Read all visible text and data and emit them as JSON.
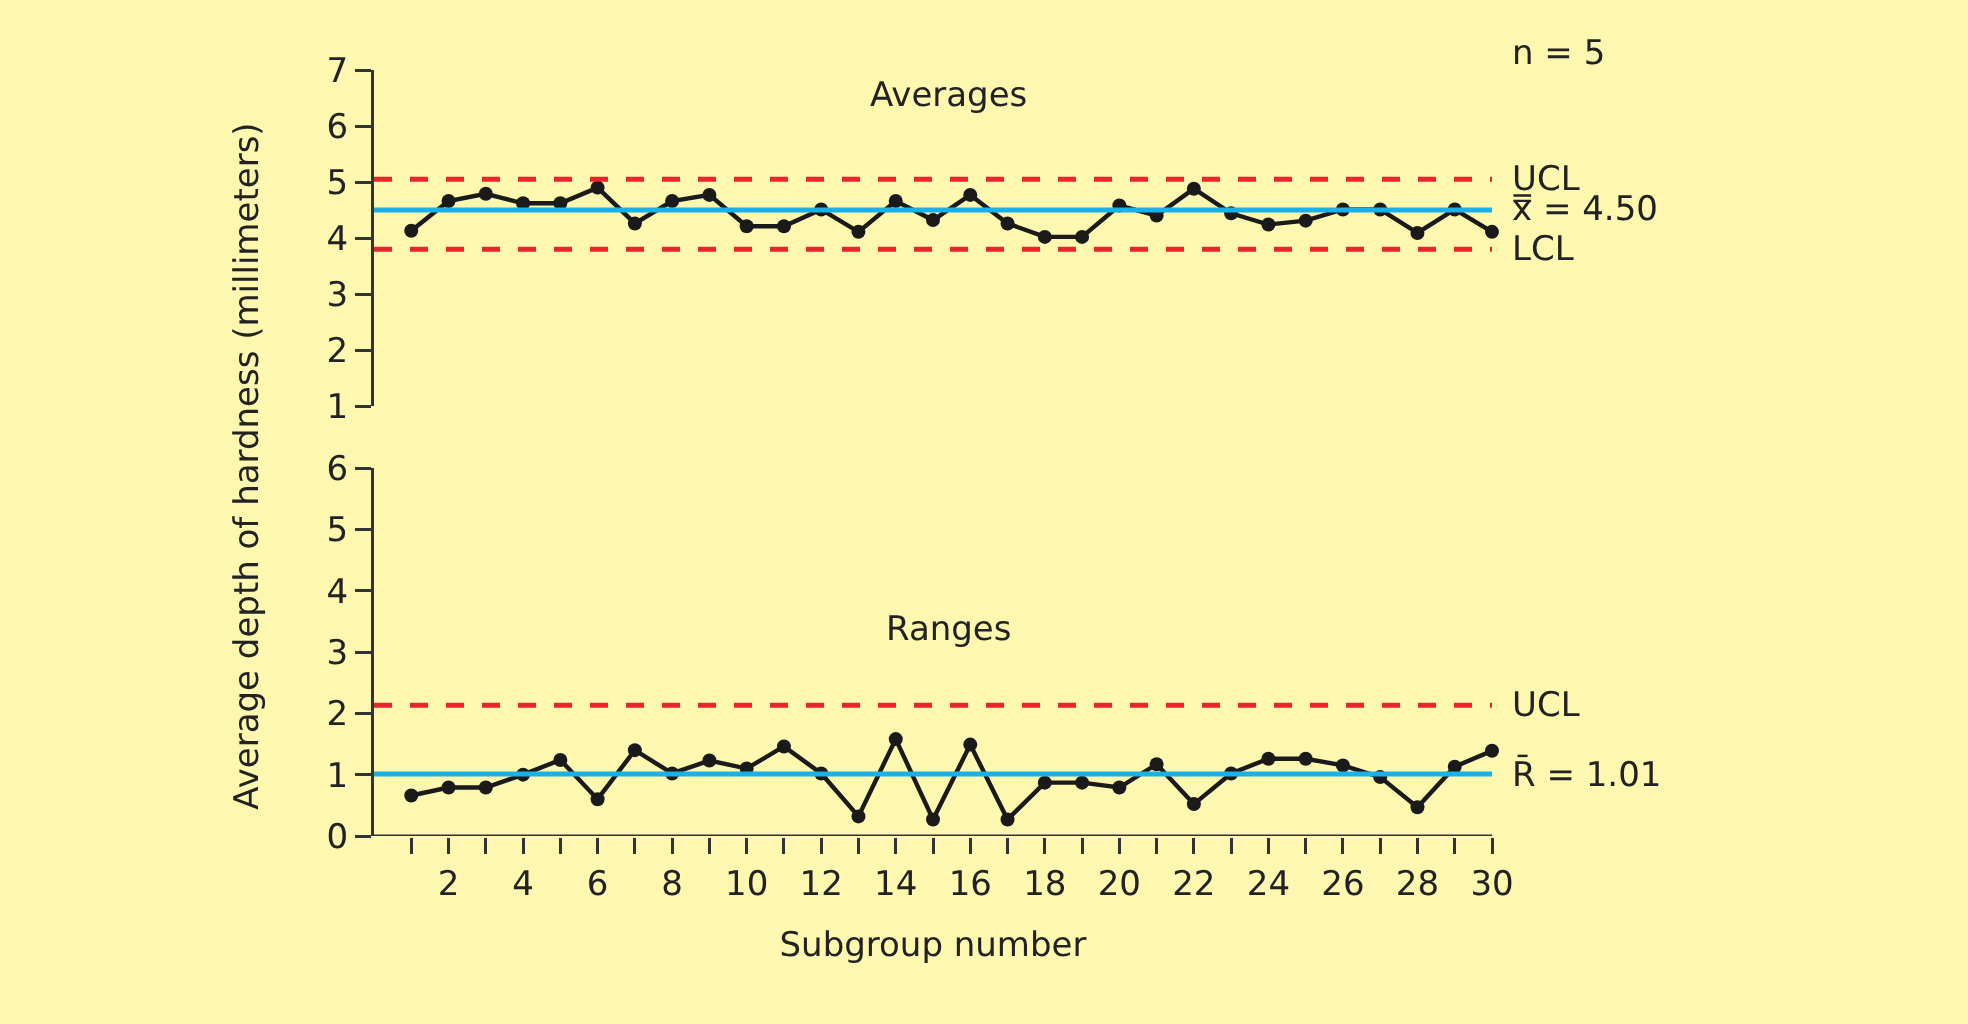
{
  "chart_data": [
    {
      "type": "line",
      "title": "Averages",
      "ylabel": "Average depth of hardness (millimeters)",
      "x": [
        1,
        2,
        3,
        4,
        5,
        6,
        7,
        8,
        9,
        10,
        11,
        12,
        13,
        14,
        15,
        16,
        17,
        18,
        19,
        20,
        21,
        22,
        23,
        24,
        25,
        26,
        27,
        28,
        29,
        30
      ],
      "series": [
        {
          "color": "#1a1a1a",
          "values": [
            4.13,
            4.66,
            4.79,
            4.62,
            4.62,
            4.9,
            4.26,
            4.66,
            4.77,
            4.21,
            4.21,
            4.51,
            4.11,
            4.66,
            4.32,
            4.77,
            4.26,
            4.02,
            4.02,
            4.58,
            4.4,
            4.88,
            4.44,
            4.24,
            4.31,
            4.51,
            4.51,
            4.09,
            4.51,
            4.11
          ]
        }
      ],
      "xlim": [
        0,
        30
      ],
      "ylim": [
        1,
        7
      ],
      "yticks": [
        1,
        2,
        3,
        4,
        5,
        6,
        7
      ],
      "ref_lines": [
        {
          "axis": "y",
          "value": 5.05,
          "label": "UCL",
          "color": "#e8262a",
          "line_style": "dashed"
        },
        {
          "axis": "y",
          "value": 4.5,
          "label": "x̿ = 4.50",
          "color": "#1ab0e8",
          "line_style": "solid"
        },
        {
          "axis": "y",
          "value": 3.8,
          "label": "LCL",
          "color": "#e8262a",
          "line_style": "dashed"
        }
      ],
      "annotations": [
        "n = 5"
      ],
      "tick_labels": "y",
      "grid": false,
      "marker": "circle",
      "line_style": "solid"
    },
    {
      "type": "line",
      "title": "Ranges",
      "xlabel": "Subgroup number",
      "x": [
        1,
        2,
        3,
        4,
        5,
        6,
        7,
        8,
        9,
        10,
        11,
        12,
        13,
        14,
        15,
        16,
        17,
        18,
        19,
        20,
        21,
        22,
        23,
        24,
        25,
        26,
        27,
        28,
        29,
        30
      ],
      "series": [
        {
          "color": "#1a1a1a",
          "values": [
            0.66,
            0.79,
            0.79,
            1.0,
            1.24,
            0.6,
            1.4,
            1.02,
            1.23,
            1.1,
            1.46,
            1.02,
            0.32,
            1.58,
            0.27,
            1.49,
            0.27,
            0.87,
            0.87,
            0.79,
            1.17,
            0.52,
            1.02,
            1.26,
            1.26,
            1.15,
            0.96,
            0.47,
            1.13,
            1.39
          ]
        }
      ],
      "xlim": [
        0,
        30
      ],
      "xticks": [
        {
          "value": 1,
          "label": null
        },
        2,
        {
          "value": 3,
          "label": null
        },
        4,
        {
          "value": 5,
          "label": null
        },
        6,
        {
          "value": 7,
          "label": null
        },
        8,
        {
          "value": 9,
          "label": null
        },
        10,
        {
          "value": 11,
          "label": null
        },
        12,
        {
          "value": 13,
          "label": null
        },
        14,
        {
          "value": 15,
          "label": null
        },
        16,
        {
          "value": 17,
          "label": null
        },
        18,
        {
          "value": 19,
          "label": null
        },
        20,
        {
          "value": 21,
          "label": null
        },
        22,
        {
          "value": 23,
          "label": null
        },
        24,
        {
          "value": 25,
          "label": null
        },
        26,
        {
          "value": 27,
          "label": null
        },
        28,
        {
          "value": 29,
          "label": null
        },
        30
      ],
      "ylim": [
        0,
        6
      ],
      "yticks": [
        0,
        1,
        2,
        3,
        4,
        5,
        6
      ],
      "ref_lines": [
        {
          "axis": "y",
          "value": 2.13,
          "label": "UCL",
          "color": "#e8262a",
          "line_style": "dashed"
        },
        {
          "axis": "y",
          "value": 1.01,
          "label": "R̄ = 1.01",
          "color": "#1ab0e8",
          "line_style": "solid"
        }
      ],
      "grid": false,
      "marker": "circle",
      "line_style": "solid"
    }
  ]
}
